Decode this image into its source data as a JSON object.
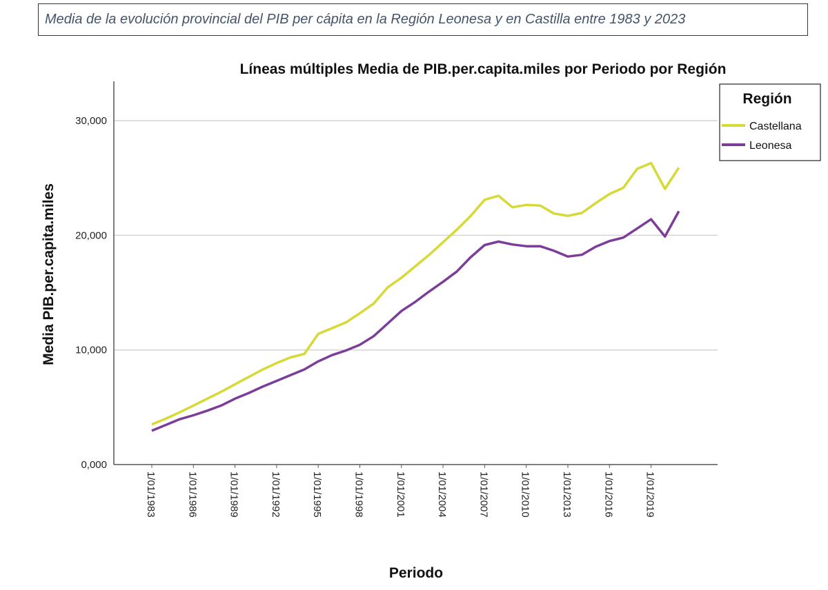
{
  "caption": "Media de la evolución provincial del PIB per cápita en la Región Leonesa y en Castilla entre 1983 y 2023",
  "chart_data": {
    "type": "line",
    "title": "Líneas múltiples Media de PIB.per.capita.miles por Periodo por Región",
    "xlabel": "Periodo",
    "ylabel": "Media PIB.per.capita.miles",
    "ylim": [
      0,
      33000
    ],
    "yticks": [
      0,
      10000,
      20000,
      30000
    ],
    "ytick_labels": [
      "0,000",
      "10,000",
      "20,000",
      "30,000"
    ],
    "grid": "horizontal",
    "x": [
      1983,
      1984,
      1985,
      1986,
      1987,
      1988,
      1989,
      1990,
      1991,
      1992,
      1993,
      1994,
      1995,
      1996,
      1997,
      1998,
      1999,
      2000,
      2001,
      2002,
      2003,
      2004,
      2005,
      2006,
      2007,
      2008,
      2009,
      2010,
      2011,
      2012,
      2013,
      2014,
      2015,
      2016,
      2017,
      2018,
      2019,
      2020,
      2021
    ],
    "xtick_labels": [
      "1/01/1983",
      "1/01/1986",
      "1/01/1989",
      "1/01/1992",
      "1/01/1995",
      "1/01/1998",
      "1/01/2001",
      "1/01/2004",
      "1/01/2007",
      "1/01/2010",
      "1/01/2013",
      "1/01/2016",
      "1/01/2019"
    ],
    "legend": {
      "title": "Región",
      "position": "top-right"
    },
    "series": [
      {
        "name": "Castellana",
        "color": "#d6d936",
        "values": [
          3500,
          4000,
          4550,
          5150,
          5750,
          6350,
          7000,
          7650,
          8300,
          8850,
          9350,
          9650,
          11400,
          11900,
          12400,
          13200,
          14050,
          15450,
          16300,
          17300,
          18300,
          19400,
          20500,
          21700,
          23100,
          23450,
          22450,
          22650,
          22600,
          21900,
          21700,
          21950,
          22800,
          23600,
          24150,
          25800,
          26300,
          24050,
          25900
        ]
      },
      {
        "name": "Leonesa",
        "color": "#7b3d98",
        "values": [
          2950,
          3450,
          3950,
          4300,
          4700,
          5150,
          5750,
          6250,
          6800,
          7300,
          7800,
          8300,
          9000,
          9550,
          9950,
          10450,
          11200,
          12300,
          13400,
          14200,
          15100,
          15950,
          16850,
          18100,
          19150,
          19450,
          19200,
          19050,
          19050,
          18650,
          18150,
          18300,
          19000,
          19500,
          19800,
          20600,
          21400,
          19900,
          22100
        ]
      }
    ]
  }
}
